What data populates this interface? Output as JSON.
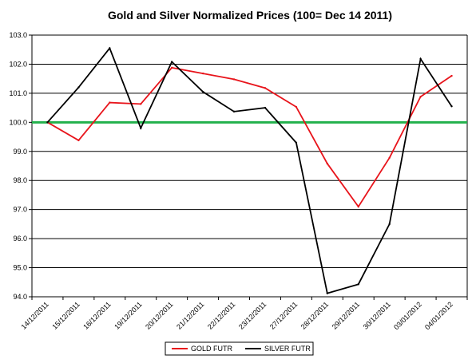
{
  "chart_data": {
    "type": "line",
    "title": "Gold and Silver Normalized Prices  (100= Dec 14 2011)",
    "xlabel": "",
    "ylabel": "",
    "ylim": [
      94.0,
      103.0
    ],
    "yticks": [
      "94.0",
      "95.0",
      "96.0",
      "97.0",
      "98.0",
      "99.0",
      "100.0",
      "101.0",
      "102.0",
      "103.0"
    ],
    "categories": [
      "14/12/2011",
      "15/12/2011",
      "16/12/2011",
      "19/12/2011",
      "20/12/2011",
      "21/12/2011",
      "22/12/2011",
      "23/12/2011",
      "27/12/2011",
      "28/12/2011",
      "29/12/2011",
      "30/12/2011",
      "03/01/2012",
      "04/01/2012"
    ],
    "grid": true,
    "legend_position": "bottom",
    "reference_line": {
      "value": 100.0,
      "color": "#22b14c"
    },
    "series": [
      {
        "name": "GOLD  FUTR",
        "color": "#e8141b",
        "values": [
          100.0,
          99.38,
          100.68,
          100.63,
          101.88,
          101.68,
          101.48,
          101.18,
          100.53,
          98.58,
          97.1,
          98.78,
          100.88,
          101.6
        ]
      },
      {
        "name": "SILVER  FUTR",
        "color": "#000000",
        "values": [
          100.0,
          101.2,
          102.55,
          99.8,
          102.08,
          101.05,
          100.37,
          100.5,
          99.3,
          94.12,
          94.43,
          96.5,
          102.18,
          100.55
        ]
      }
    ]
  }
}
